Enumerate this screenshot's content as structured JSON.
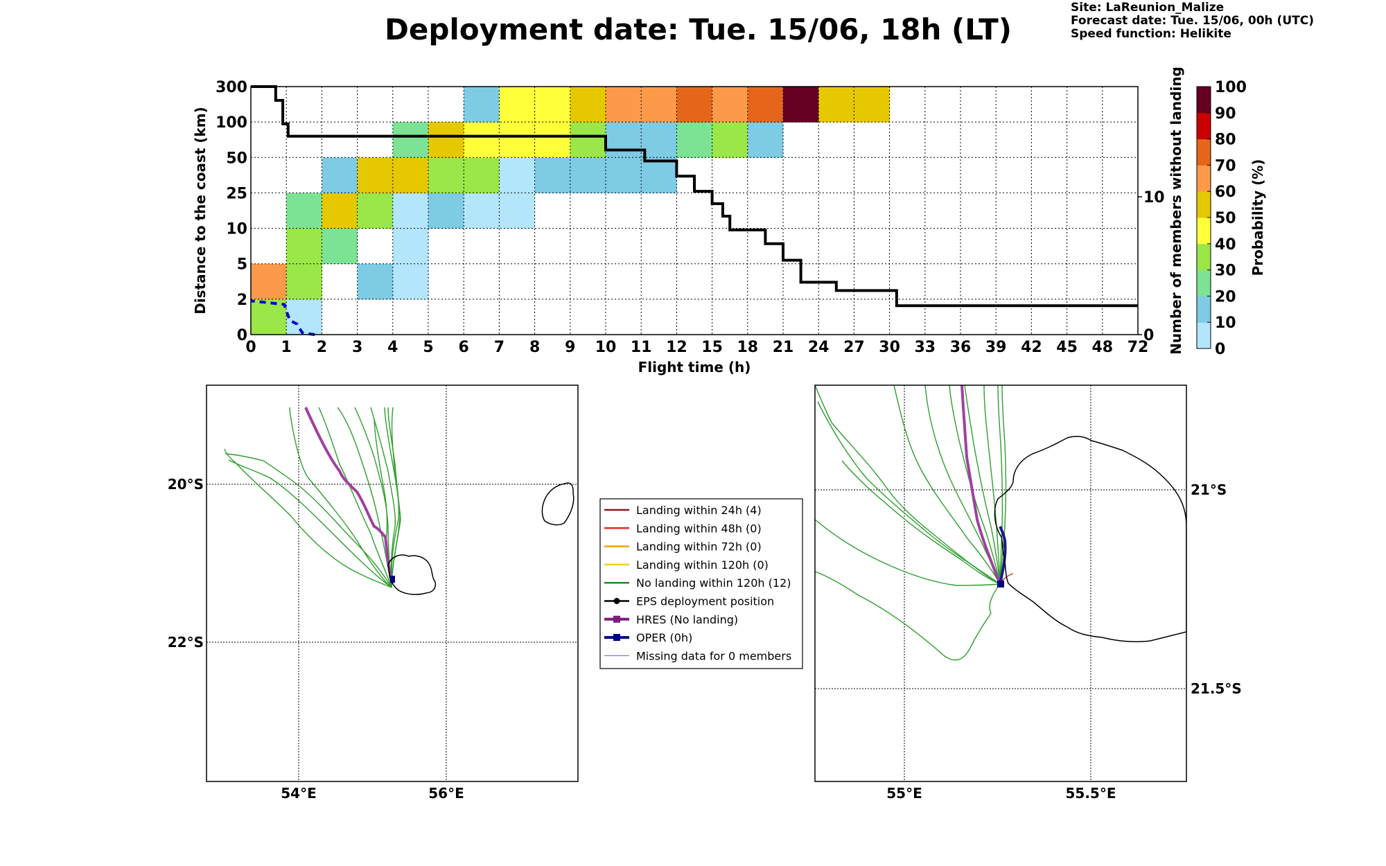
{
  "header": {
    "title": "Deployment date: Tue. 15/06, 18h (LT)",
    "site": "Site: LaReunion_Malize",
    "forecast_date": "Forecast date: Tue. 15/06, 00h (UTC)",
    "speed_function": "Speed function: Helikite"
  },
  "chart_data": {
    "type": "heatmap",
    "xlabel": "Flight time (h)",
    "ylabel": "Distance to the coast (km)",
    "y2label": "Number of members without landing",
    "colorbar_label": "Probability (%)",
    "x_ticks": [
      "0",
      "1",
      "2",
      "3",
      "4",
      "5",
      "6",
      "7",
      "8",
      "9",
      "10",
      "11",
      "12",
      "15",
      "18",
      "21",
      "24",
      "27",
      "30",
      "33",
      "36",
      "39",
      "42",
      "45",
      "48",
      "72"
    ],
    "y_ticks": [
      "0",
      "2",
      "5",
      "10",
      "25",
      "50",
      "100",
      "300"
    ],
    "y2_ticks": [
      "0",
      "10"
    ],
    "y2_range": [
      0,
      18
    ],
    "colorbar": {
      "ticks": [
        "0",
        "10",
        "20",
        "30",
        "40",
        "50",
        "60",
        "70",
        "80",
        "90",
        "100"
      ],
      "colors": [
        "#b3e5fb",
        "#7ecbe4",
        "#7de394",
        "#9be648",
        "#ffff3a",
        "#e6c800",
        "#fd9a4a",
        "#e5661a",
        "#c80000",
        "#660022"
      ]
    },
    "cells": [
      {
        "x": 0,
        "y": 0,
        "p": 35
      },
      {
        "x": 0,
        "y": 1,
        "p": 65
      },
      {
        "x": 1,
        "y": 0,
        "p": 5
      },
      {
        "x": 1,
        "y": 1,
        "p": 35
      },
      {
        "x": 1,
        "y": 2,
        "p": 35
      },
      {
        "x": 1,
        "y": 3,
        "p": 25
      },
      {
        "x": 2,
        "y": 2,
        "p": 25
      },
      {
        "x": 2,
        "y": 3,
        "p": 55
      },
      {
        "x": 2,
        "y": 4,
        "p": 15
      },
      {
        "x": 3,
        "y": 1,
        "p": 15
      },
      {
        "x": 3,
        "y": 3,
        "p": 35
      },
      {
        "x": 3,
        "y": 4,
        "p": 55
      },
      {
        "x": 4,
        "y": 1,
        "p": 5
      },
      {
        "x": 4,
        "y": 2,
        "p": 5
      },
      {
        "x": 4,
        "y": 3,
        "p": 5
      },
      {
        "x": 4,
        "y": 4,
        "p": 55
      },
      {
        "x": 4,
        "y": 5,
        "p": 25
      },
      {
        "x": 5,
        "y": 3,
        "p": 15
      },
      {
        "x": 5,
        "y": 4,
        "p": 35
      },
      {
        "x": 5,
        "y": 5,
        "p": 55
      },
      {
        "x": 6,
        "y": 3,
        "p": 5
      },
      {
        "x": 6,
        "y": 4,
        "p": 35
      },
      {
        "x": 6,
        "y": 5,
        "p": 45
      },
      {
        "x": 6,
        "y": 6,
        "p": 15
      },
      {
        "x": 7,
        "y": 3,
        "p": 5
      },
      {
        "x": 7,
        "y": 4,
        "p": 5
      },
      {
        "x": 7,
        "y": 5,
        "p": 45
      },
      {
        "x": 7,
        "y": 6,
        "p": 45
      },
      {
        "x": 8,
        "y": 4,
        "p": 15
      },
      {
        "x": 8,
        "y": 5,
        "p": 45
      },
      {
        "x": 8,
        "y": 6,
        "p": 45
      },
      {
        "x": 9,
        "y": 4,
        "p": 15
      },
      {
        "x": 9,
        "y": 5,
        "p": 35
      },
      {
        "x": 9,
        "y": 6,
        "p": 55
      },
      {
        "x": 10,
        "y": 4,
        "p": 15
      },
      {
        "x": 10,
        "y": 5,
        "p": 15
      },
      {
        "x": 10,
        "y": 6,
        "p": 65
      },
      {
        "x": 11,
        "y": 4,
        "p": 15
      },
      {
        "x": 11,
        "y": 5,
        "p": 15
      },
      {
        "x": 11,
        "y": 6,
        "p": 65
      },
      {
        "x": 12,
        "y": 5,
        "p": 25
      },
      {
        "x": 12,
        "y": 6,
        "p": 75
      },
      {
        "x": 13,
        "y": 5,
        "p": 35
      },
      {
        "x": 13,
        "y": 6,
        "p": 65
      },
      {
        "x": 14,
        "y": 5,
        "p": 15
      },
      {
        "x": 14,
        "y": 6,
        "p": 75
      },
      {
        "x": 15,
        "y": 6,
        "p": 95
      },
      {
        "x": 16,
        "y": 6,
        "p": 55
      },
      {
        "x": 17,
        "y": 6,
        "p": 55
      }
    ],
    "members_without_landing": [
      [
        0,
        18
      ],
      [
        0.7,
        18
      ],
      [
        0.7,
        17
      ],
      [
        0.9,
        17
      ],
      [
        0.9,
        15.3
      ],
      [
        1.05,
        15.3
      ],
      [
        1.05,
        14.4
      ],
      [
        10,
        14.4
      ],
      [
        10,
        13.4
      ],
      [
        11.1,
        13.4
      ],
      [
        11.1,
        12.6
      ],
      [
        12,
        12.6
      ],
      [
        12,
        11.5
      ],
      [
        12.5,
        11.5
      ],
      [
        12.5,
        10.4
      ],
      [
        13,
        10.4
      ],
      [
        13,
        9.5
      ],
      [
        13.3,
        9.5
      ],
      [
        13.3,
        8.6
      ],
      [
        13.5,
        8.6
      ],
      [
        13.5,
        7.6
      ],
      [
        14.5,
        7.6
      ],
      [
        14.5,
        6.6
      ],
      [
        15,
        6.6
      ],
      [
        15,
        5.4
      ],
      [
        15.5,
        5.4
      ],
      [
        15.5,
        3.8
      ],
      [
        16.5,
        3.8
      ],
      [
        16.5,
        3.2
      ],
      [
        18.2,
        3.2
      ],
      [
        18.2,
        2.1
      ],
      [
        25,
        2.1
      ]
    ],
    "oper_distance": [
      [
        0,
        1.8
      ],
      [
        0.05,
        1.45
      ],
      [
        0.3,
        1.3
      ],
      [
        0.4,
        1.1
      ],
      [
        0.75,
        0.97
      ],
      [
        0.85,
        0.95
      ],
      [
        0.9,
        0.5
      ],
      [
        0.95,
        0
      ]
    ]
  },
  "maps": {
    "left": {
      "lat_labels": [
        "20°S",
        "22°S"
      ],
      "lon_labels": [
        "54°E",
        "56°E"
      ]
    },
    "right": {
      "lat_labels": [
        "21°S",
        "21.5°S"
      ],
      "lon_labels": [
        "55°E",
        "55.5°E"
      ]
    }
  },
  "legend": {
    "items": [
      {
        "label": "Landing within 24h (4)",
        "color": "#8b1a1a",
        "style": "line"
      },
      {
        "label": "Landing within 48h (0)",
        "color": "#e8281e",
        "style": "line"
      },
      {
        "label": "Landing within 72h (0)",
        "color": "#ff9a1e",
        "style": "line"
      },
      {
        "label": "Landing within 120h (0)",
        "color": "#f0d01e",
        "style": "line"
      },
      {
        "label": "No landing within 120h (12)",
        "color": "#228b22",
        "style": "line"
      },
      {
        "label": "EPS deployment position",
        "color": "#000000",
        "style": "dot"
      },
      {
        "label": "HRES (No landing)",
        "color": "#7b1f7b",
        "style": "square"
      },
      {
        "label": "OPER (0h)",
        "color": "#000080",
        "style": "square"
      },
      {
        "label": "Missing data for 0 members",
        "color": "#5a5aff",
        "style": "thin"
      }
    ]
  }
}
